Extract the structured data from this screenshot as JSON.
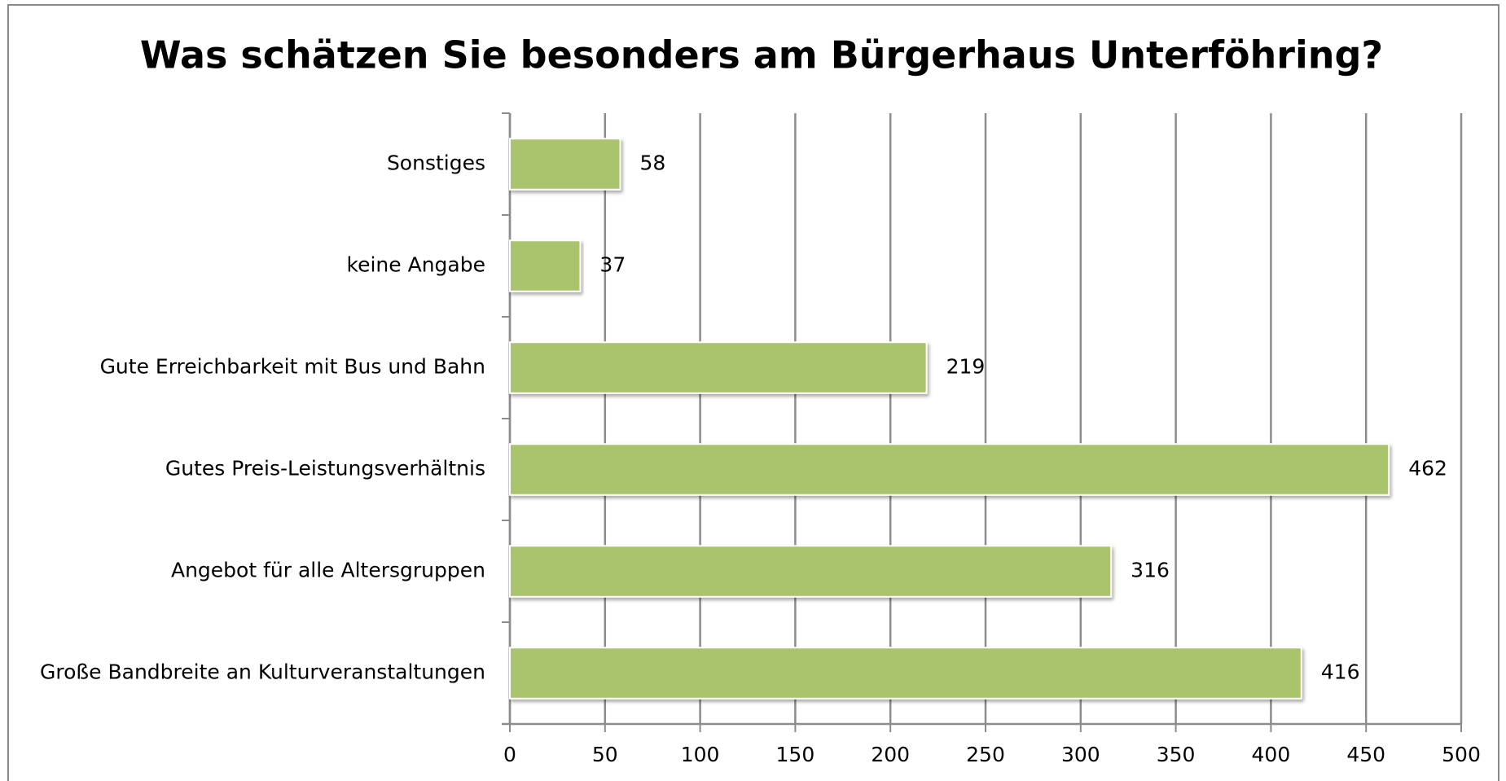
{
  "chart_data": {
    "type": "barh",
    "title": "Was schätzen Sie besonders am Bürgerhaus Unterföhring?",
    "categories": [
      "Sonstiges",
      "keine Angabe",
      "Gute Erreichbarkeit mit Bus und Bahn",
      "Gutes Preis-Leistungsverhältnis",
      "Angebot für alle Altersgruppen",
      "Große Bandbreite an Kulturveranstaltungen"
    ],
    "values": [
      58,
      37,
      219,
      462,
      316,
      416
    ],
    "color": "#a9c46c",
    "xlim": [
      0,
      500
    ],
    "xticks": [
      0,
      50,
      100,
      150,
      200,
      250,
      300,
      350,
      400,
      450,
      500
    ],
    "grid": true
  }
}
